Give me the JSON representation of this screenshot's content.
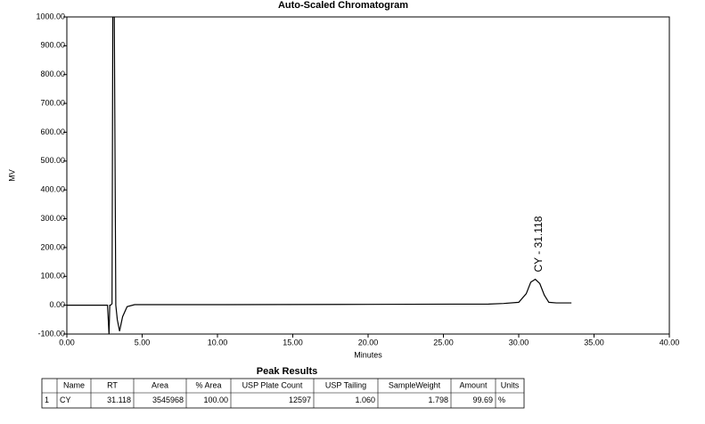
{
  "chart_data": {
    "type": "line",
    "title": "Auto-Scaled Chromatogram",
    "xlabel": "Minutes",
    "ylabel": "MV",
    "x": [
      0,
      2.7,
      2.8,
      2.85,
      2.9,
      3.0,
      3.05,
      3.15,
      3.25,
      3.35,
      3.5,
      3.7,
      4.0,
      4.5,
      10,
      20,
      28,
      29,
      30,
      30.5,
      30.8,
      31.1,
      31.4,
      31.7,
      32,
      32.5,
      33.5
    ],
    "series": [
      {
        "color": "#000000",
        "values": [
          0,
          0,
          -100,
          0,
          0,
          5,
          1000,
          1000,
          0,
          -50,
          -90,
          -40,
          -5,
          2,
          2,
          3,
          4,
          6,
          10,
          40,
          80,
          90,
          75,
          35,
          10,
          8,
          8
        ]
      }
    ],
    "annotations": [
      {
        "text": "CY - 31.118",
        "x": 31.118,
        "y": 90
      }
    ],
    "xlim": [
      0,
      40
    ],
    "ylim": [
      -100,
      1000
    ],
    "xticks": [
      {
        "value": 0,
        "label": "0.00"
      },
      {
        "value": 5,
        "label": "5.00"
      },
      {
        "value": 10,
        "label": "10.00"
      },
      {
        "value": 15,
        "label": "15.00"
      },
      {
        "value": 20,
        "label": "20.00"
      },
      {
        "value": 25,
        "label": "25.00"
      },
      {
        "value": 30,
        "label": "30.00"
      },
      {
        "value": 35,
        "label": "35.00"
      },
      {
        "value": 40,
        "label": "40.00"
      }
    ],
    "yticks": [
      {
        "value": -100,
        "label": "-100.00"
      },
      {
        "value": 0,
        "label": "0.00"
      },
      {
        "value": 100,
        "label": "100.00"
      },
      {
        "value": 200,
        "label": "200.00"
      },
      {
        "value": 300,
        "label": "300.00"
      },
      {
        "value": 400,
        "label": "400.00"
      },
      {
        "value": 500,
        "label": "500.00"
      },
      {
        "value": 600,
        "label": "600.00"
      },
      {
        "value": 700,
        "label": "700.00"
      },
      {
        "value": 800,
        "label": "800.00"
      },
      {
        "value": 900,
        "label": "900.00"
      },
      {
        "value": 1000,
        "label": "1000.00"
      }
    ]
  },
  "table": {
    "title": "Peak Results",
    "header": [
      "",
      "Name",
      "RT",
      "Area",
      "% Area",
      "USP Plate Count",
      "USP Tailing",
      "SampleWeight",
      "Amount",
      "Units"
    ],
    "rows": [
      [
        "1",
        "CY",
        "31.118",
        "3545968",
        "100.00",
        "12597",
        "1.060",
        "1.798",
        "99.69",
        "%"
      ]
    ]
  }
}
